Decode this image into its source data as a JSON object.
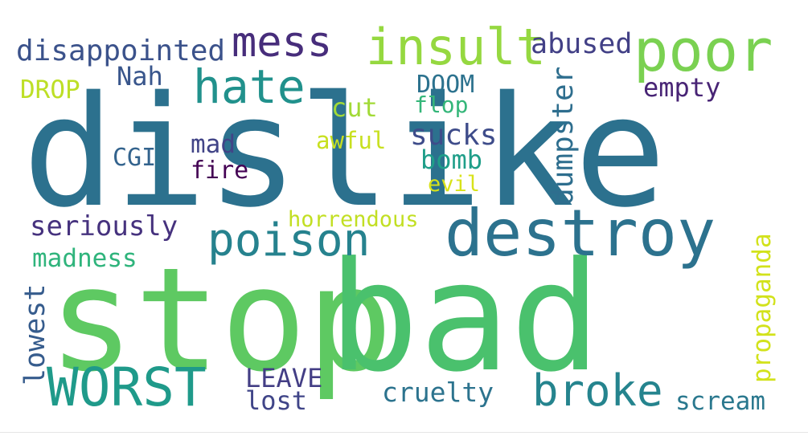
{
  "output": {
    "label": "negatives"
  },
  "wordcloud": {
    "background": "#ffffff",
    "words": [
      {
        "text": "dislike",
        "color": "#2c718e"
      },
      {
        "text": "stop",
        "color": "#5ec962"
      },
      {
        "text": "bad",
        "color": "#4ac16d"
      },
      {
        "text": "destroy",
        "color": "#2c728e"
      },
      {
        "text": "poor",
        "color": "#7ad151"
      },
      {
        "text": "insult",
        "color": "#95d840"
      },
      {
        "text": "mess",
        "color": "#472d7b"
      },
      {
        "text": "hate",
        "color": "#21918c"
      },
      {
        "text": "poison",
        "color": "#26828e"
      },
      {
        "text": "WORST",
        "color": "#1f9a8a"
      },
      {
        "text": "broke",
        "color": "#25848e"
      },
      {
        "text": "disappointed",
        "color": "#3b528b"
      },
      {
        "text": "abused",
        "color": "#424086"
      },
      {
        "text": "empty",
        "color": "#482475"
      },
      {
        "text": "Nah",
        "color": "#39568c"
      },
      {
        "text": "DROP",
        "color": "#bddf26"
      },
      {
        "text": "DOOM",
        "color": "#2c728e"
      },
      {
        "text": "cut",
        "color": "#a2da37"
      },
      {
        "text": "flop",
        "color": "#34b679"
      },
      {
        "text": "dumpster",
        "color": "#2e6e8e"
      },
      {
        "text": "sucks",
        "color": "#3e4c8a"
      },
      {
        "text": "awful",
        "color": "#c8e020"
      },
      {
        "text": "mad",
        "color": "#414487"
      },
      {
        "text": "CGI",
        "color": "#33638d"
      },
      {
        "text": "bomb",
        "color": "#1f9e89"
      },
      {
        "text": "fire",
        "color": "#440154"
      },
      {
        "text": "evil",
        "color": "#d8e219"
      },
      {
        "text": "seriously",
        "color": "#46327e"
      },
      {
        "text": "horrendous",
        "color": "#c2df23"
      },
      {
        "text": "madness",
        "color": "#2fb47c"
      },
      {
        "text": "propaganda",
        "color": "#d2e21b"
      },
      {
        "text": "lowest",
        "color": "#365c8d"
      },
      {
        "text": "LEAVE",
        "color": "#433e85"
      },
      {
        "text": "lost",
        "color": "#404588"
      },
      {
        "text": "cruelty",
        "color": "#2c738e"
      },
      {
        "text": "scream",
        "color": "#2a788e"
      }
    ]
  }
}
